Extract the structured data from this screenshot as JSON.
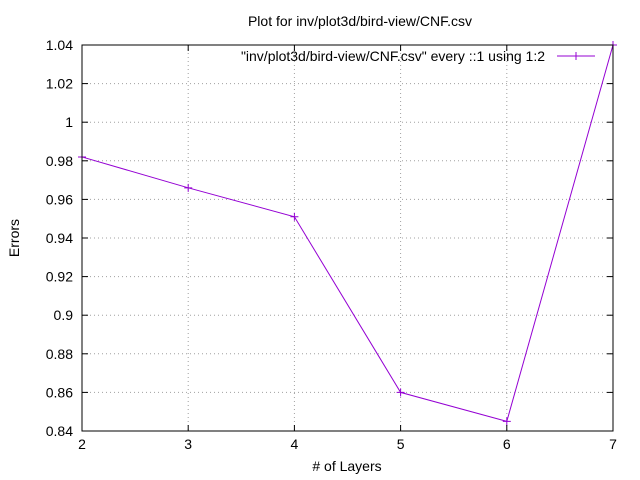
{
  "chart_data": {
    "type": "line",
    "title": "Plot for inv/plot3d/bird-view/CNF.csv",
    "xlabel": "# of Layers",
    "ylabel": "Errors",
    "xlim": [
      2,
      7
    ],
    "ylim": [
      0.84,
      1.04
    ],
    "xticks": [
      "2",
      "3",
      "4",
      "5",
      "6",
      "7"
    ],
    "yticks": [
      "0.84",
      "0.86",
      "0.88",
      "0.9",
      "0.92",
      "0.94",
      "0.96",
      "0.98",
      "1",
      "1.02",
      "1.04"
    ],
    "grid": true,
    "legend_position": "top-right",
    "series": [
      {
        "name": "\"inv/plot3d/bird-view/CNF.csv\" every ::1 using 1:2",
        "color": "#9400d3",
        "marker": "plus",
        "x": [
          2,
          3,
          4,
          5,
          6,
          7
        ],
        "y": [
          0.982,
          0.966,
          0.951,
          0.86,
          0.845,
          1.04
        ]
      }
    ]
  }
}
